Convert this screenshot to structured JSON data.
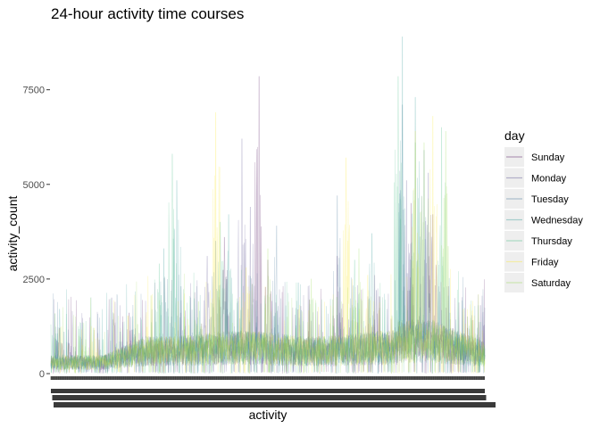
{
  "chart_data": {
    "type": "line",
    "title": "24-hour activity time courses",
    "xlabel": "activity",
    "ylabel": "activity_count",
    "ylim": [
      0,
      9000
    ],
    "yticks": [
      0,
      2500,
      5000,
      7500
    ],
    "yticklabels": [
      "0",
      "2500",
      "5000",
      "7500"
    ],
    "grid": false,
    "legend_position": "right",
    "legend_title": "day",
    "x_points": 1440,
    "series": [
      {
        "name": "Sunday",
        "color": "#440154",
        "peaks": [
          [
            0.02,
            1200
          ],
          [
            0.18,
            1600
          ],
          [
            0.4,
            3600
          ],
          [
            0.48,
            7850
          ],
          [
            0.5,
            3000
          ],
          [
            0.66,
            3100
          ],
          [
            0.83,
            4500
          ],
          [
            0.88,
            4200
          ],
          [
            0.96,
            1200
          ]
        ]
      },
      {
        "name": "Monday",
        "color": "#443a83",
        "peaks": [
          [
            0.05,
            1300
          ],
          [
            0.14,
            2000
          ],
          [
            0.36,
            3100
          ],
          [
            0.44,
            6200
          ],
          [
            0.46,
            4400
          ],
          [
            0.75,
            2200
          ],
          [
            0.82,
            5100
          ],
          [
            0.87,
            5300
          ],
          [
            0.99,
            1800
          ]
        ]
      },
      {
        "name": "Tuesday",
        "color": "#31688e",
        "peaks": [
          [
            0.03,
            1100
          ],
          [
            0.16,
            1100
          ],
          [
            0.3,
            2300
          ],
          [
            0.38,
            3500
          ],
          [
            0.52,
            3900
          ],
          [
            0.66,
            4700
          ],
          [
            0.81,
            7100
          ],
          [
            0.86,
            5900
          ],
          [
            0.96,
            1500
          ]
        ]
      },
      {
        "name": "Wednesday",
        "color": "#21908d",
        "peaks": [
          [
            0.02,
            1700
          ],
          [
            0.26,
            3300
          ],
          [
            0.29,
            5100
          ],
          [
            0.41,
            4200
          ],
          [
            0.57,
            2400
          ],
          [
            0.74,
            3700
          ],
          [
            0.81,
            8900
          ],
          [
            0.84,
            7300
          ],
          [
            0.92,
            1600
          ]
        ]
      },
      {
        "name": "Thursday",
        "color": "#35b779",
        "peaks": [
          [
            0.0,
            1300
          ],
          [
            0.12,
            900
          ],
          [
            0.25,
            2900
          ],
          [
            0.28,
            5800
          ],
          [
            0.39,
            4000
          ],
          [
            0.7,
            3000
          ],
          [
            0.8,
            7850
          ],
          [
            0.84,
            6100
          ],
          [
            0.9,
            6500
          ]
        ]
      },
      {
        "name": "Friday",
        "color": "#fde725",
        "peaks": [
          [
            0.1,
            1200
          ],
          [
            0.22,
            1500
          ],
          [
            0.38,
            6900
          ],
          [
            0.45,
            2800
          ],
          [
            0.68,
            5700
          ],
          [
            0.73,
            2600
          ],
          [
            0.84,
            6400
          ],
          [
            0.88,
            6800
          ],
          [
            0.95,
            1700
          ]
        ]
      },
      {
        "name": "Saturday",
        "color": "#8fd744",
        "peaks": [
          [
            0.08,
            900
          ],
          [
            0.2,
            1300
          ],
          [
            0.34,
            1900
          ],
          [
            0.5,
            3300
          ],
          [
            0.6,
            2500
          ],
          [
            0.71,
            3300
          ],
          [
            0.86,
            6100
          ],
          [
            0.91,
            6400
          ],
          [
            0.97,
            1400
          ]
        ]
      }
    ]
  }
}
